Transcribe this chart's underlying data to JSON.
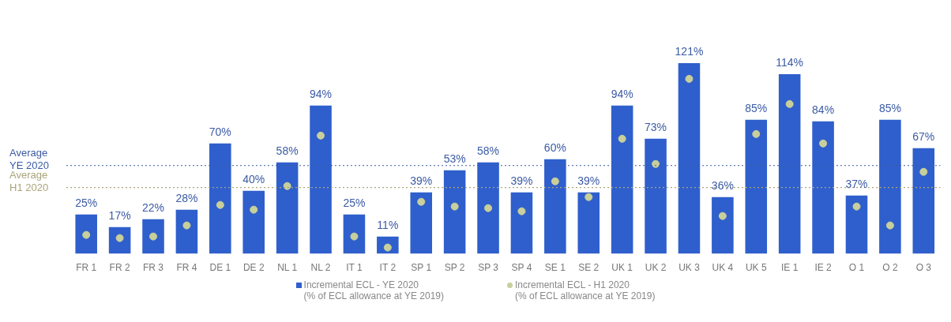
{
  "chart_data": {
    "type": "bar",
    "categories": [
      "FR 1",
      "FR 2",
      "FR 3",
      "FR 4",
      "DE 1",
      "DE 2",
      "NL 1",
      "NL 2",
      "IT 1",
      "IT 2",
      "SP 1",
      "SP 2",
      "SP 3",
      "SP 4",
      "SE 1",
      "SE 2",
      "UK 1",
      "UK 2",
      "UK 3",
      "UK 4",
      "UK 5",
      "IE 1",
      "IE 2",
      "O 1",
      "O 2",
      "O 3"
    ],
    "series": [
      {
        "name": "Incremental ECL - YE 2020\n(% of ECL allowance at YE 2019)",
        "color": "#2f5fcc",
        "values": [
          25,
          17,
          22,
          28,
          70,
          40,
          58,
          94,
          25,
          11,
          39,
          53,
          58,
          39,
          60,
          39,
          94,
          73,
          121,
          36,
          85,
          114,
          84,
          37,
          85,
          67
        ],
        "value_labels": [
          "25%",
          "17%",
          "22%",
          "28%",
          "70%",
          "40%",
          "58%",
          "94%",
          "25%",
          "11%",
          "39%",
          "53%",
          "58%",
          "39%",
          "60%",
          "39%",
          "94%",
          "73%",
          "121%",
          "36%",
          "85%",
          "114%",
          "84%",
          "37%",
          "85%",
          "67%"
        ]
      },
      {
        "name": "Incremental ECL - H1 2020\n(% of ECL allowance at YE 2019)",
        "type": "scatter",
        "color": "#c9cf9a",
        "marker": "circle",
        "x": [
          "FR 1",
          "FR 2",
          "FR 3",
          "FR 4",
          "DE 1",
          "DE 2",
          "NL 1",
          "NL 2",
          "IT 1",
          "IT 2",
          "SP 1",
          "SP 2",
          "SP 3",
          "SP 4",
          "SE 1",
          "SE 2",
          "UK 1",
          "UK 2",
          "UK 3",
          "UK 4",
          "UK 5",
          "IE 1",
          "IE 2",
          "O 1",
          "O 2",
          "O 3"
        ],
        "values": [
          12,
          10,
          11,
          18,
          31,
          28,
          43,
          75,
          11,
          4,
          33,
          30,
          29,
          27,
          46,
          36,
          73,
          57,
          111,
          24,
          76,
          95,
          70,
          30,
          18,
          52
        ]
      }
    ],
    "tick_labels": "x",
    "grid": false,
    "legend": "bottom",
    "ref_lines": [
      {
        "axis": "y",
        "value": 56,
        "label": "Average\nYE 2020",
        "color": "#3b5ba5",
        "line_style": "dotted"
      },
      {
        "axis": "y",
        "value": 42,
        "label": "Average\nH1 2020",
        "color": "#aaa47a",
        "line_style": "dotted"
      }
    ]
  }
}
